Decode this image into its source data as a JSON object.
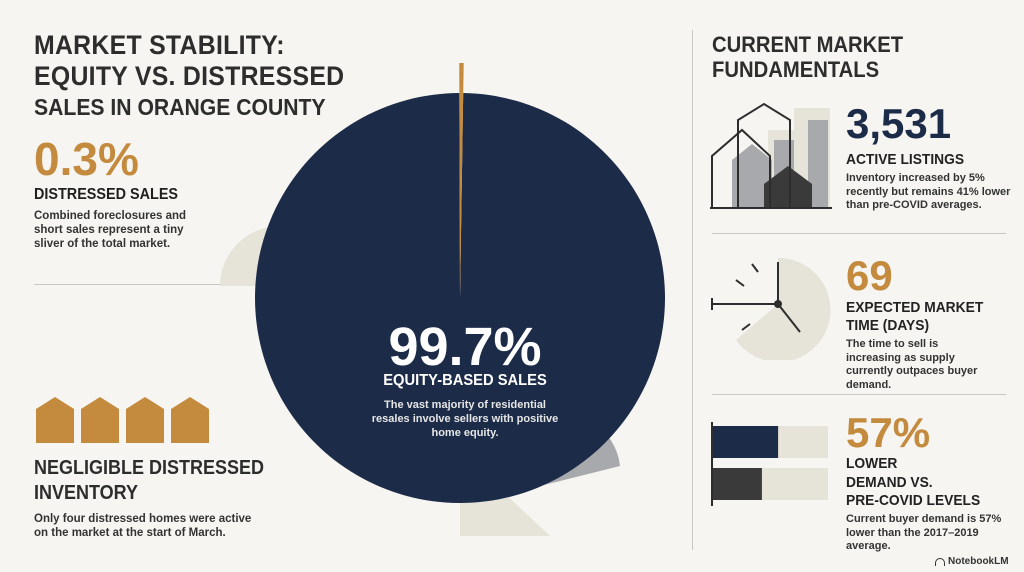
{
  "title": {
    "line1": "MARKET STABILITY:",
    "line2": "EQUITY VS. DISTRESSED",
    "line3": "SALES IN ORANGE COUNTY"
  },
  "distressed": {
    "value": "0.3%",
    "label": "DISTRESSED SALES",
    "description": "Combined foreclosures and short sales represent a tiny sliver of the total market."
  },
  "negligible": {
    "house_icon_count": 4,
    "title_line1": "NEGLIGIBLE DISTRESSED",
    "title_line2": "INVENTORY",
    "description": "Only four distressed homes were active on the market at the start of March."
  },
  "equity": {
    "value": "99.7%",
    "label": "EQUITY-BASED SALES",
    "description": "The vast majority of residential resales involve sellers with positive home equity."
  },
  "pie": {
    "slices": [
      {
        "share": 99.7,
        "color": "#1c2b47"
      },
      {
        "share": 0.3,
        "color": "#c48a3e"
      }
    ]
  },
  "fundamentals": {
    "title_line1": "CURRENT MARKET",
    "title_line2": "FUNDAMENTALS",
    "listings": {
      "value": "3,531",
      "label": "ACTIVE LISTINGS",
      "description": "Inventory increased by 5% recently but remains 41% lower than pre-COVID averages."
    },
    "market_time": {
      "value": "69",
      "label_line1": "EXPECTED MARKET",
      "label_line2": "TIME (DAYS)",
      "description": "The time to sell is increasing as supply currently outpaces buyer demand."
    },
    "demand": {
      "value": "57%",
      "sub": "LOWER",
      "label_line1": "DEMAND VS.",
      "label_line2": "PRE-COVID LEVELS",
      "description": "Current buyer demand is 57% lower than the 2017–2019 average.",
      "bars": [
        0.57,
        0.43
      ]
    }
  },
  "colors": {
    "navy": "#1c2b47",
    "gold": "#c48a3e",
    "gray": "#a7a9ad",
    "beige": "#e6e3d8",
    "dark": "#3a3a3a"
  },
  "brand": "NotebookLM"
}
